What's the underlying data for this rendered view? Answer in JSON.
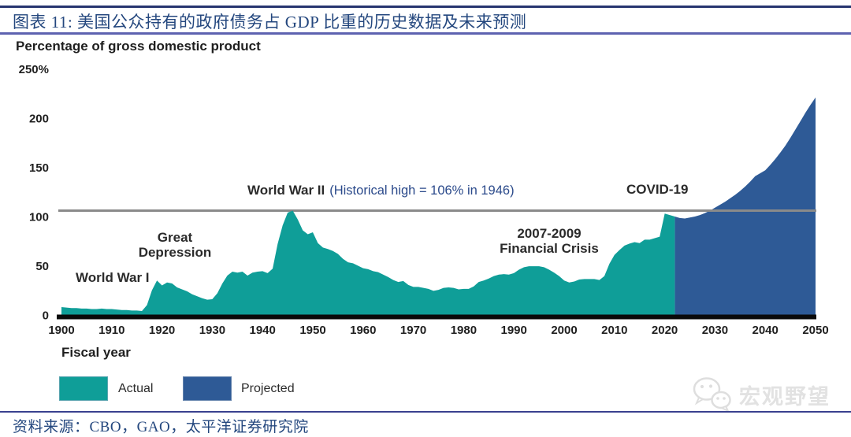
{
  "header": {
    "title": "图表 11:  美国公众持有的政府债务占 GDP 比重的历史数据及未来预测"
  },
  "chart": {
    "heading": "Percentage of gross domestic product",
    "x_axis_title": "Fiscal year"
  },
  "annotations": {
    "ww1": "World War I",
    "great_depression": [
      "Great",
      "Depression"
    ],
    "ww2_title": "World War II",
    "ww2_note": "(Historical high = 106% in 1946)",
    "financial_crisis": [
      "2007-2009",
      "Financial Crisis"
    ],
    "covid": "COVID-19"
  },
  "legend": {
    "actual": "Actual",
    "projected": "Projected"
  },
  "watermark": {
    "text": "宏观野望"
  },
  "footer": {
    "source": "资料来源：CBO，GAO，太平洋证券研究院"
  },
  "colors": {
    "actual": "#0f9e98",
    "projected": "#2e5a96",
    "reference_line": "#8a8a8a",
    "axis_bar": "#0a0a0a",
    "navy_text": "#24477e"
  },
  "chart_data": {
    "type": "area",
    "title": "Percentage of gross domestic product",
    "xlabel": "Fiscal year",
    "ylabel": "Percentage of gross domestic product",
    "xlim": [
      1900,
      2050
    ],
    "ylim": [
      0,
      250
    ],
    "grid": false,
    "legend_position": "bottom-left",
    "x_ticks": [
      1900,
      1910,
      1920,
      1930,
      1940,
      1950,
      1960,
      1970,
      1980,
      1990,
      2000,
      2010,
      2020,
      2030,
      2040,
      2050
    ],
    "y_ticks": [
      {
        "value": 250,
        "label": "250%"
      },
      {
        "value": 200,
        "label": "200"
      },
      {
        "value": 150,
        "label": "150"
      },
      {
        "value": 100,
        "label": "100"
      },
      {
        "value": 50,
        "label": "50"
      },
      {
        "value": 0,
        "label": "0"
      }
    ],
    "reference_line": {
      "value": 106,
      "label": "Historical high = 106% in 1946"
    },
    "series": [
      {
        "name": "Actual",
        "color": "#0f9e98",
        "points": [
          [
            1900,
            8
          ],
          [
            1901,
            7.5
          ],
          [
            1902,
            7
          ],
          [
            1903,
            7
          ],
          [
            1904,
            6.5
          ],
          [
            1905,
            6.5
          ],
          [
            1906,
            6
          ],
          [
            1907,
            6
          ],
          [
            1908,
            6.5
          ],
          [
            1909,
            6
          ],
          [
            1910,
            6
          ],
          [
            1911,
            5.5
          ],
          [
            1912,
            5
          ],
          [
            1913,
            5
          ],
          [
            1914,
            4.5
          ],
          [
            1915,
            4.5
          ],
          [
            1916,
            4
          ],
          [
            1917,
            10
          ],
          [
            1918,
            25
          ],
          [
            1919,
            35
          ],
          [
            1920,
            30
          ],
          [
            1921,
            33
          ],
          [
            1922,
            32
          ],
          [
            1923,
            28
          ],
          [
            1924,
            26
          ],
          [
            1925,
            24
          ],
          [
            1926,
            21
          ],
          [
            1927,
            19
          ],
          [
            1928,
            17
          ],
          [
            1929,
            15.5
          ],
          [
            1930,
            16
          ],
          [
            1931,
            22
          ],
          [
            1932,
            32
          ],
          [
            1933,
            40
          ],
          [
            1934,
            44
          ],
          [
            1935,
            43
          ],
          [
            1936,
            44
          ],
          [
            1937,
            40
          ],
          [
            1938,
            43
          ],
          [
            1939,
            44
          ],
          [
            1940,
            44.5
          ],
          [
            1941,
            42.5
          ],
          [
            1942,
            47
          ],
          [
            1943,
            72
          ],
          [
            1944,
            91
          ],
          [
            1945,
            104
          ],
          [
            1946,
            106
          ],
          [
            1947,
            97
          ],
          [
            1948,
            86
          ],
          [
            1949,
            82
          ],
          [
            1950,
            84
          ],
          [
            1951,
            73
          ],
          [
            1952,
            68.5
          ],
          [
            1953,
            67
          ],
          [
            1954,
            65
          ],
          [
            1955,
            62
          ],
          [
            1956,
            57
          ],
          [
            1957,
            53.5
          ],
          [
            1958,
            52.5
          ],
          [
            1959,
            50
          ],
          [
            1960,
            47.5
          ],
          [
            1961,
            46.5
          ],
          [
            1962,
            44.5
          ],
          [
            1963,
            43.5
          ],
          [
            1964,
            41
          ],
          [
            1965,
            38.5
          ],
          [
            1966,
            35.5
          ],
          [
            1967,
            33.5
          ],
          [
            1968,
            34.5
          ],
          [
            1969,
            30.5
          ],
          [
            1970,
            28.5
          ],
          [
            1971,
            28.5
          ],
          [
            1972,
            27.5
          ],
          [
            1973,
            26.5
          ],
          [
            1974,
            24.5
          ],
          [
            1975,
            25.5
          ],
          [
            1976,
            27.5
          ],
          [
            1977,
            28
          ],
          [
            1978,
            27.5
          ],
          [
            1979,
            26
          ],
          [
            1980,
            26.5
          ],
          [
            1981,
            26.5
          ],
          [
            1982,
            29
          ],
          [
            1983,
            33.5
          ],
          [
            1984,
            35
          ],
          [
            1985,
            37
          ],
          [
            1986,
            39.5
          ],
          [
            1987,
            41
          ],
          [
            1988,
            41.5
          ],
          [
            1989,
            41
          ],
          [
            1990,
            42.5
          ],
          [
            1991,
            46
          ],
          [
            1992,
            48.5
          ],
          [
            1993,
            49.5
          ],
          [
            1994,
            49.5
          ],
          [
            1995,
            49.5
          ],
          [
            1996,
            48.5
          ],
          [
            1997,
            46
          ],
          [
            1998,
            43
          ],
          [
            1999,
            39.5
          ],
          [
            2000,
            35
          ],
          [
            2001,
            33
          ],
          [
            2002,
            34
          ],
          [
            2003,
            36
          ],
          [
            2004,
            36.5
          ],
          [
            2005,
            36.5
          ],
          [
            2006,
            36.5
          ],
          [
            2007,
            35.5
          ],
          [
            2008,
            39.5
          ],
          [
            2009,
            52
          ],
          [
            2010,
            61
          ],
          [
            2011,
            66
          ],
          [
            2012,
            70.5
          ],
          [
            2013,
            72.5
          ],
          [
            2014,
            74
          ],
          [
            2015,
            73
          ],
          [
            2016,
            76.5
          ],
          [
            2017,
            76.5
          ],
          [
            2018,
            78
          ],
          [
            2019,
            79.5
          ],
          [
            2020,
            103
          ],
          [
            2021,
            101.5
          ],
          [
            2022,
            100
          ]
        ]
      },
      {
        "name": "Projected",
        "color": "#2e5a96",
        "points": [
          [
            2022,
            100
          ],
          [
            2023,
            98.5
          ],
          [
            2024,
            98
          ],
          [
            2025,
            99
          ],
          [
            2026,
            100
          ],
          [
            2027,
            101.5
          ],
          [
            2028,
            103.5
          ],
          [
            2029,
            106
          ],
          [
            2030,
            109
          ],
          [
            2031,
            112
          ],
          [
            2032,
            115
          ],
          [
            2033,
            118.5
          ],
          [
            2034,
            122
          ],
          [
            2035,
            126
          ],
          [
            2036,
            130.5
          ],
          [
            2037,
            135.5
          ],
          [
            2038,
            141
          ],
          [
            2039,
            144
          ],
          [
            2040,
            147
          ],
          [
            2041,
            152.5
          ],
          [
            2042,
            158.5
          ],
          [
            2043,
            165
          ],
          [
            2044,
            172
          ],
          [
            2045,
            180
          ],
          [
            2046,
            188.5
          ],
          [
            2047,
            197
          ],
          [
            2048,
            205.5
          ],
          [
            2049,
            213.5
          ],
          [
            2050,
            221
          ]
        ]
      }
    ]
  }
}
